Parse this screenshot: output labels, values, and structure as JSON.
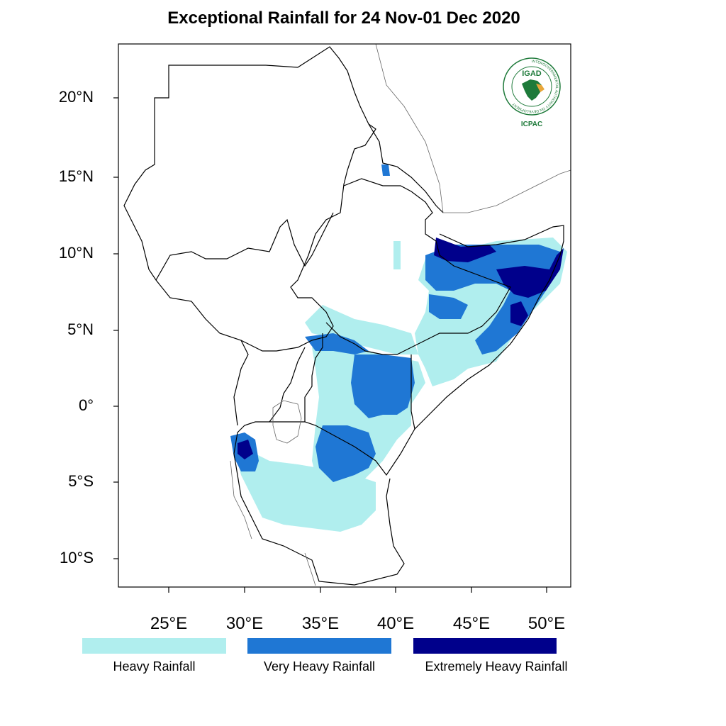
{
  "title": "Exceptional Rainfall for 24 Nov-01 Dec 2020",
  "map": {
    "lat_ticks": [
      "20°N",
      "15°N",
      "10°N",
      "5°N",
      "0°",
      "5°S",
      "10°S"
    ],
    "lon_ticks": [
      "25°E",
      "30°E",
      "35°E",
      "40°E",
      "45°E",
      "50°E"
    ],
    "lon_range": [
      21.7,
      51.6
    ],
    "lat_range": [
      -11.9,
      23.6
    ]
  },
  "legend": [
    {
      "label": "Heavy Rainfall",
      "color": "#b0eeee"
    },
    {
      "label": "Very Heavy Rainfall",
      "color": "#1f77d4"
    },
    {
      "label": "Extremely Heavy Rainfall",
      "color": "#00008b"
    }
  ],
  "logo": {
    "name": "IGAD",
    "subname": "ICPAC",
    "ring_text": "INTERGOVERNMENTAL AUTHORITY ON DEVELOPMENT",
    "colors": {
      "green": "#1e7a3a",
      "gold": "#e8a63a"
    }
  }
}
